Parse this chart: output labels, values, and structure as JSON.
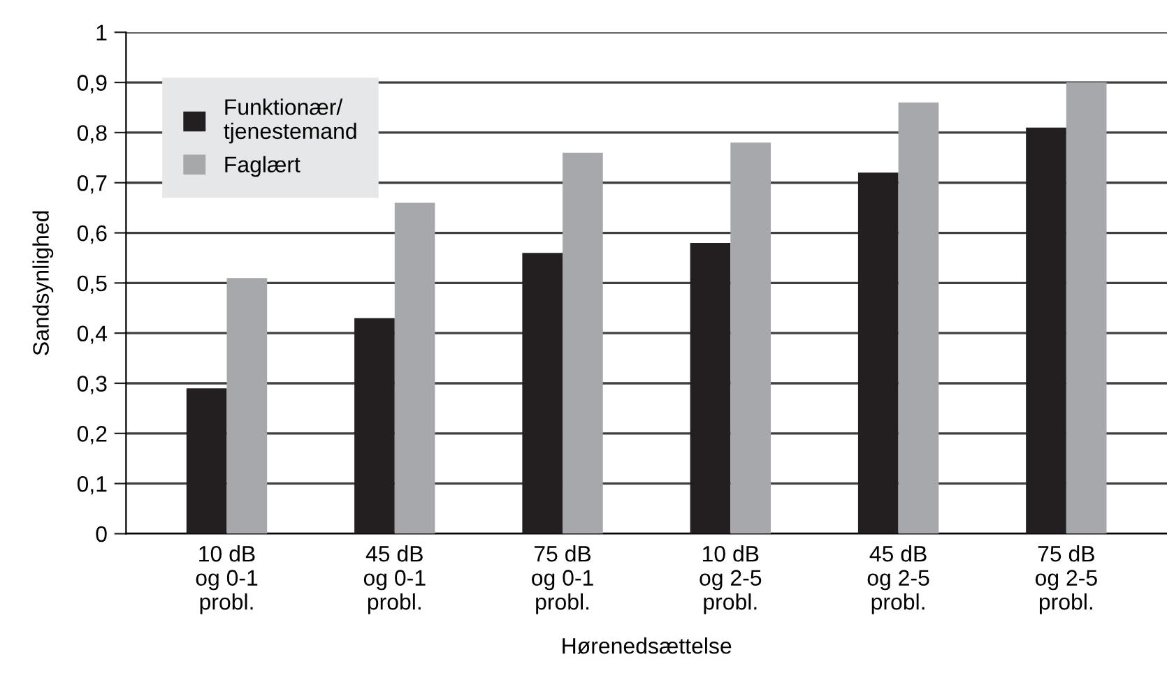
{
  "chart_data": {
    "type": "bar",
    "xlabel": "Hørenedsættelse",
    "ylabel": "Sandsynlighed",
    "categories": [
      "10 dB\nog 0-1\nprobl.",
      "45 dB\nog 0-1\nprobl.",
      "75 dB\nog 0-1\nprobl.",
      "10 dB\nog 2-5\nprobl.",
      "45 dB\nog 2-5\nprobl.",
      "75 dB\nog 2-5\nprobl."
    ],
    "series": [
      {
        "name": "Funktionær/\ntjenestemand",
        "color": "#231f20",
        "values": [
          0.29,
          0.43,
          0.56,
          0.58,
          0.72,
          0.81
        ]
      },
      {
        "name": "Faglært",
        "color": "#a7a8ab",
        "values": [
          0.51,
          0.66,
          0.76,
          0.78,
          0.86,
          0.9
        ]
      }
    ],
    "ylim": [
      0,
      1
    ],
    "yticks": [
      {
        "value": 0,
        "label": "0"
      },
      {
        "value": 0.1,
        "label": "0,1"
      },
      {
        "value": 0.2,
        "label": "0,2"
      },
      {
        "value": 0.3,
        "label": "0,3"
      },
      {
        "value": 0.4,
        "label": "0,4"
      },
      {
        "value": 0.5,
        "label": "0,5"
      },
      {
        "value": 0.6,
        "label": "0,6"
      },
      {
        "value": 0.7,
        "label": "0,7"
      },
      {
        "value": 0.8,
        "label": "0,8"
      },
      {
        "value": 0.9,
        "label": "0,9"
      },
      {
        "value": 1,
        "label": "1"
      }
    ],
    "grid": "y",
    "legend": "top left"
  }
}
